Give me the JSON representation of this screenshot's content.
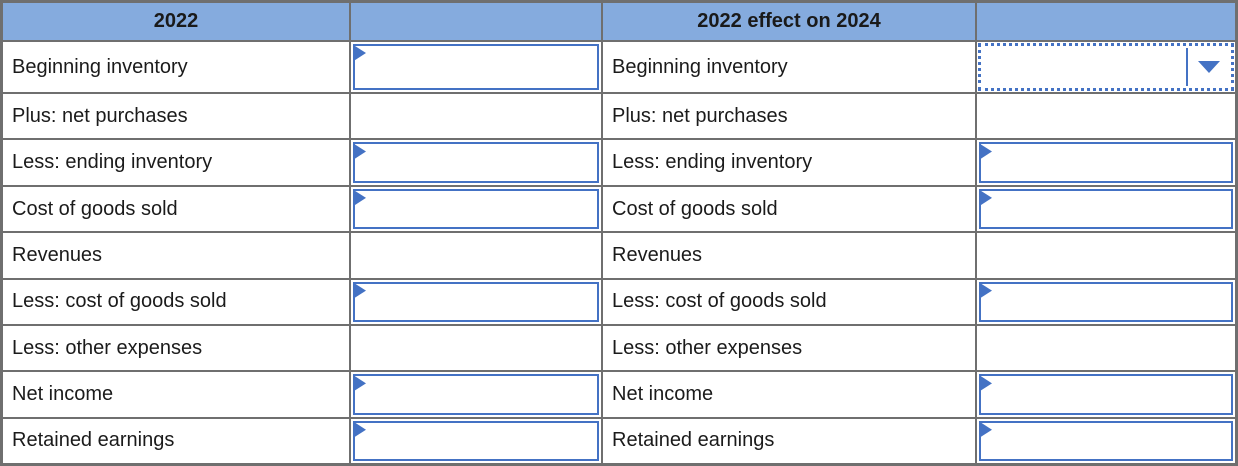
{
  "table": {
    "headers": {
      "left_title": "2022",
      "left_amount_title": "",
      "right_title": "2022 effect on 2024",
      "right_amount_title": ""
    },
    "rows": [
      {
        "label": "Beginning inventory",
        "left_cell": "input",
        "right_cell": "dropdown"
      },
      {
        "label": "Plus: net purchases",
        "left_cell": "none",
        "right_cell": "none"
      },
      {
        "label": "Less: ending inventory",
        "left_cell": "input",
        "right_cell": "input"
      },
      {
        "label": "Cost of goods sold",
        "left_cell": "input",
        "right_cell": "input"
      },
      {
        "label": "Revenues",
        "left_cell": "none",
        "right_cell": "none"
      },
      {
        "label": "Less: cost of goods sold",
        "left_cell": "input",
        "right_cell": "input"
      },
      {
        "label": "Less: other expenses",
        "left_cell": "none",
        "right_cell": "none"
      },
      {
        "label": "Net income",
        "left_cell": "input",
        "right_cell": "input"
      },
      {
        "label": "Retained earnings",
        "left_cell": "input",
        "right_cell": "input"
      }
    ],
    "inputs": {
      "value": ""
    },
    "dropdown": {
      "selected_value": ""
    }
  },
  "icons": {
    "flag": "answer-flag-icon",
    "caret": "dropdown-caret-icon"
  },
  "colors": {
    "header_bg": "#85ABDE",
    "grid_border": "#6F6F6F",
    "input_border": "#4472C4",
    "text_color": "#1B1B1B"
  }
}
